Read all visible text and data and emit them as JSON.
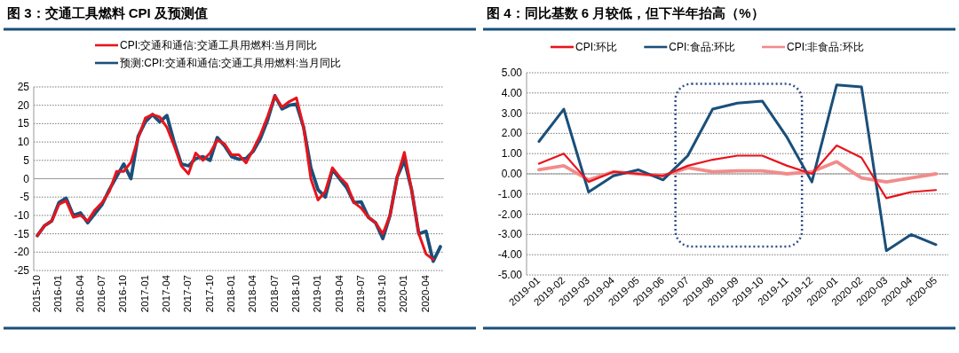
{
  "chart_data": [
    {
      "type": "line",
      "title": "图 3：交通工具燃料 CPI 及预测值",
      "categories": [
        "2015-10",
        null,
        null,
        "2016-01",
        null,
        null,
        "2016-04",
        null,
        null,
        "2016-07",
        null,
        null,
        "2016-10",
        null,
        null,
        "2017-01",
        null,
        null,
        "2017-04",
        null,
        null,
        "2017-07",
        null,
        null,
        "2017-10",
        null,
        null,
        "2018-01",
        null,
        null,
        "2018-04",
        null,
        null,
        "2018-07",
        null,
        null,
        "2018-10",
        null,
        null,
        "2019-01",
        null,
        null,
        "2019-04",
        null,
        null,
        "2019-07",
        null,
        null,
        "2019-10",
        null,
        null,
        "2020-01",
        null,
        null,
        "2020-04",
        null,
        null
      ],
      "series": [
        {
          "name": "CPI:交通和通信:交通工具用燃料:当月同比",
          "color": "#e8141c",
          "values": [
            -15.5,
            -12.8,
            -11.5,
            -7,
            -6,
            -10.5,
            -10,
            -11.5,
            -8.5,
            -6.5,
            -3.5,
            2,
            2,
            4.5,
            11,
            16.5,
            17.5,
            16.8,
            14,
            9,
            3.5,
            1.3,
            7,
            5,
            7,
            10.5,
            9.5,
            6.5,
            6.5,
            4.3,
            8,
            12,
            17,
            22.6,
            19.5,
            21,
            22,
            14,
            0,
            -5.8,
            -3.5,
            3,
            0.5,
            -1.5,
            -6.5,
            -8,
            -10.5,
            -12,
            -15,
            -10,
            0.5,
            7.2,
            -3,
            -15,
            -20.5,
            -22,
            null
          ]
        },
        {
          "name": "预测:CPI:交通和通信:交通工具用燃料:当月同比",
          "color": "#1a4f7a",
          "values": [
            -15.5,
            -12.8,
            -11.5,
            -6.5,
            -5.3,
            -10,
            -9.3,
            -12,
            -9.5,
            -7,
            -3,
            0.5,
            4,
            0,
            11.5,
            15.5,
            17.5,
            15.5,
            17.2,
            10,
            4,
            3.5,
            5.5,
            6,
            5,
            11.2,
            9,
            6,
            5.3,
            5.5,
            7.5,
            11,
            16,
            22.6,
            19,
            20,
            20.3,
            14,
            3,
            -3,
            -5,
            2.5,
            0,
            -2.5,
            -6.5,
            -6.3,
            -10.5,
            -12,
            -16.3,
            -10,
            0.5,
            5,
            -3,
            -15,
            -14.3,
            -22.5,
            -18.5
          ]
        }
      ],
      "ylim": [
        -25,
        25
      ],
      "yticks": [
        -25,
        -20,
        -15,
        -10,
        -5,
        0,
        5,
        10,
        15,
        20,
        25
      ],
      "grid": "y",
      "legend": "top"
    },
    {
      "type": "line",
      "title": "图 4：同比基数 6 月较低，但下半年抬高（%）",
      "categories": [
        "2019-01",
        "2019-02",
        "2019-03",
        "2019-04",
        "2019-05",
        "2019-06",
        "2019-07",
        "2019-08",
        "2019-09",
        "2019-10",
        "2019-11",
        "2019-12",
        "2020-01",
        "2020-02",
        "2020-03",
        "2020-04",
        "2020-05"
      ],
      "series": [
        {
          "name": "CPI:环比",
          "color": "#e8141c",
          "values": [
            0.5,
            1.0,
            -0.4,
            0.1,
            0.0,
            -0.1,
            0.4,
            0.7,
            0.9,
            0.9,
            0.4,
            0.0,
            1.4,
            0.8,
            -1.2,
            -0.9,
            -0.8
          ]
        },
        {
          "name": "CPI:食品:环比",
          "color": "#1a4f7a",
          "values": [
            1.6,
            3.2,
            -0.9,
            -0.1,
            0.2,
            -0.3,
            0.9,
            3.2,
            3.5,
            3.6,
            1.8,
            -0.4,
            4.4,
            4.3,
            -3.8,
            -3.0,
            -3.5
          ]
        },
        {
          "name": "CPI:非食品:环比",
          "color": "#f28b8b",
          "values": [
            0.2,
            0.4,
            -0.3,
            0.1,
            0.0,
            -0.1,
            0.3,
            0.1,
            0.15,
            0.15,
            0.0,
            0.1,
            0.6,
            -0.2,
            -0.4,
            -0.2,
            0.0
          ]
        }
      ],
      "ylim": [
        -5,
        5
      ],
      "yticks": [
        {
          "value": -5,
          "label": "-5.00"
        },
        {
          "value": -4,
          "label": "-4.00"
        },
        {
          "value": -3,
          "label": "-3.00"
        },
        {
          "value": -2,
          "label": "-2.00"
        },
        {
          "value": -1,
          "label": "-1.00"
        },
        {
          "value": 0,
          "label": "0.00"
        },
        {
          "value": 1,
          "label": "1.00"
        },
        {
          "value": 2,
          "label": "2.00"
        },
        {
          "value": 3,
          "label": "3.00"
        },
        {
          "value": 4,
          "label": "4.00"
        },
        {
          "value": 5,
          "label": "5.00"
        }
      ],
      "grid": "y",
      "legend": "top"
    }
  ]
}
